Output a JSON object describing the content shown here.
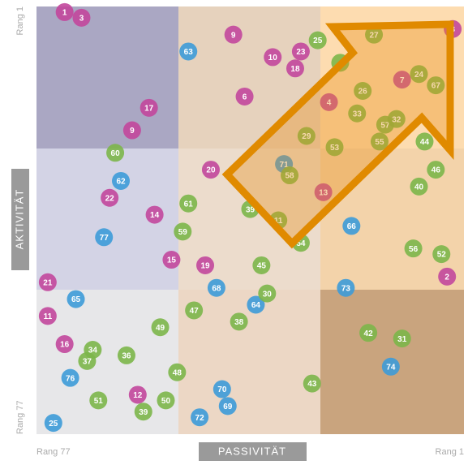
{
  "chart_data": {
    "type": "scatter",
    "x_label": "PASSIVITÄT",
    "y_label": "AKTIVITÄT",
    "xlim": [
      77,
      1
    ],
    "ylim": [
      77,
      1
    ],
    "xticks": [
      {
        "value": 77,
        "label": "Rang 77"
      },
      {
        "value": 1,
        "label": "Rang 1"
      }
    ],
    "yticks": [
      {
        "value": 1,
        "label": "Rang 1"
      },
      {
        "value": 77,
        "label": "Rang 77"
      }
    ],
    "series": [
      {
        "color": "#c2479c",
        "labels": [
          1,
          3,
          9,
          10,
          23,
          18,
          8,
          7,
          6,
          17,
          4,
          9,
          20,
          22,
          13,
          14,
          15,
          19,
          21,
          2,
          11,
          16,
          12
        ],
        "x": [
          72,
          69,
          42,
          35,
          30,
          31,
          3,
          12,
          40,
          57,
          25,
          60,
          46,
          64,
          26,
          56,
          53,
          47,
          75,
          4,
          75,
          72,
          59
        ],
        "y": [
          2,
          3,
          6,
          10,
          9,
          12,
          5,
          14,
          17,
          19,
          18,
          23,
          30,
          35,
          34,
          38,
          46,
          47,
          50,
          49,
          56,
          61,
          70
        ]
      },
      {
        "color": "#3d9bd8",
        "labels": [
          63,
          71,
          62,
          66,
          77,
          68,
          73,
          65,
          64,
          74,
          76,
          70,
          69,
          72,
          25
        ],
        "x": [
          50,
          33,
          62,
          21,
          65,
          45,
          22,
          70,
          38,
          14,
          71,
          44,
          43,
          48,
          74
        ],
        "y": [
          9,
          29,
          32,
          40,
          42,
          51,
          51,
          53,
          54,
          65,
          67,
          69,
          72,
          74,
          75
        ]
      },
      {
        "color": "#7cb64a",
        "labels": [
          25,
          27,
          4,
          26,
          24,
          67,
          33,
          57,
          32,
          29,
          53,
          55,
          44,
          60,
          58,
          46,
          40,
          61,
          39,
          11,
          59,
          54,
          56,
          52,
          45,
          30,
          47,
          38,
          49,
          42,
          31,
          34,
          37,
          36,
          48,
          43,
          51,
          50,
          39
        ],
        "x": [
          27,
          17,
          23,
          19,
          9,
          6,
          20,
          15,
          13,
          29,
          24,
          16,
          8,
          63,
          32,
          6,
          9,
          50,
          39,
          34,
          51,
          30,
          10,
          5,
          37,
          36,
          49,
          41,
          55,
          18,
          12,
          67,
          68,
          61,
          52,
          28,
          66,
          54,
          58
        ],
        "y": [
          7,
          6,
          11,
          16,
          13,
          15,
          20,
          22,
          21,
          24,
          26,
          25,
          25,
          27,
          31,
          30,
          33,
          36,
          37,
          39,
          41,
          43,
          44,
          45,
          47,
          52,
          55,
          57,
          58,
          59,
          60,
          62,
          64,
          63,
          66,
          68,
          71,
          71,
          73
        ]
      }
    ]
  }
}
